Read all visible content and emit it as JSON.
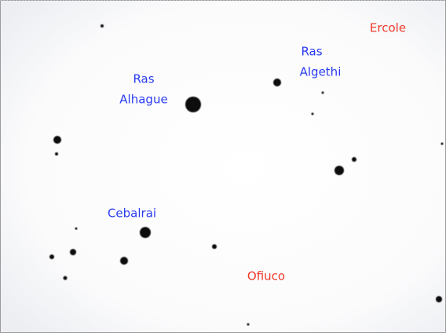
{
  "star_labels": [
    {
      "lines": [
        "Ras",
        "Alhague"
      ]
    },
    {
      "lines": [
        "Ras",
        "Algethi"
      ]
    },
    {
      "lines": [
        "Cebalrai"
      ]
    }
  ],
  "constellations": [
    "Ercole",
    "Ofiuco"
  ]
}
